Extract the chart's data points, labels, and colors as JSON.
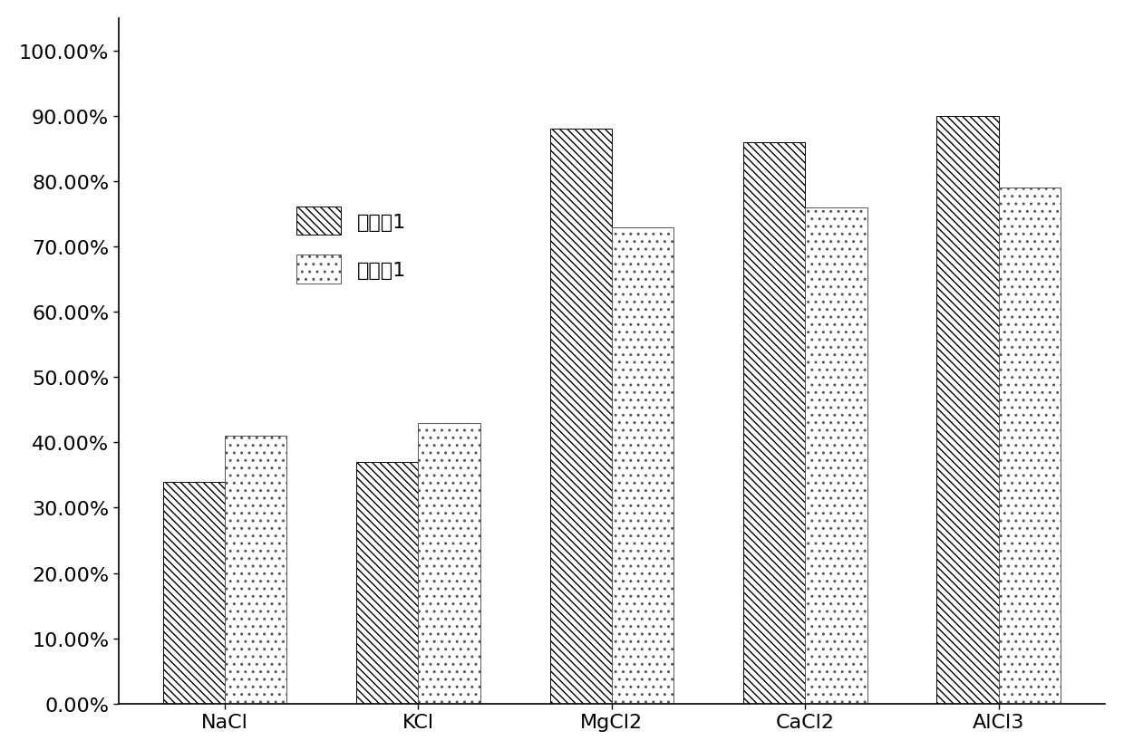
{
  "categories": [
    "NaCl",
    "KCl",
    "MgCl2",
    "CaCl2",
    "AlCl3"
  ],
  "series": [
    {
      "name": "实施例1",
      "values": [
        0.34,
        0.37,
        0.88,
        0.86,
        0.9
      ],
      "hatch": "\\\\\\\\",
      "facecolor": "#ffffff",
      "edgecolor": "#000000"
    },
    {
      "name": "对照例1",
      "values": [
        0.41,
        0.43,
        0.73,
        0.76,
        0.79
      ],
      "hatch": "..",
      "facecolor": "#ffffff",
      "edgecolor": "#555555"
    }
  ],
  "ylim": [
    0,
    1.05
  ],
  "yticks": [
    0.0,
    0.1,
    0.2,
    0.3,
    0.4,
    0.5,
    0.6,
    0.7,
    0.8,
    0.9,
    1.0
  ],
  "bar_width": 0.32,
  "background_color": "#ffffff",
  "tick_font_size": 16,
  "legend_font_size": 16,
  "xlabel_font_size": 16
}
